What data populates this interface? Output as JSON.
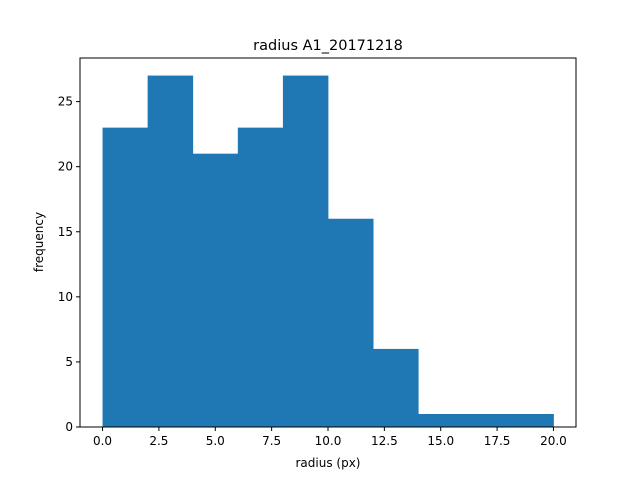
{
  "chart_data": {
    "type": "bar",
    "title": "radius A1_20171218",
    "xlabel": "radius (px)",
    "ylabel": "frequency",
    "bin_edges": [
      0,
      2,
      4,
      6,
      8,
      10,
      12,
      14,
      16,
      18,
      20
    ],
    "values": [
      23,
      27,
      21,
      23,
      27,
      16,
      6,
      1,
      1,
      1
    ],
    "xlim": [
      -1,
      21
    ],
    "ylim": [
      0,
      28.35
    ],
    "xticks": [
      0,
      2.5,
      5,
      7.5,
      10,
      12.5,
      15,
      17.5,
      20
    ],
    "xtick_labels": [
      "0.0",
      "2.5",
      "5.0",
      "7.5",
      "10.0",
      "12.5",
      "15.0",
      "17.5",
      "20.0"
    ],
    "yticks": [
      0,
      5,
      10,
      15,
      20,
      25
    ],
    "ytick_labels": [
      "0",
      "5",
      "10",
      "15",
      "20",
      "25"
    ],
    "bar_color": "#1f77b4",
    "grid": false,
    "legend": "none"
  }
}
